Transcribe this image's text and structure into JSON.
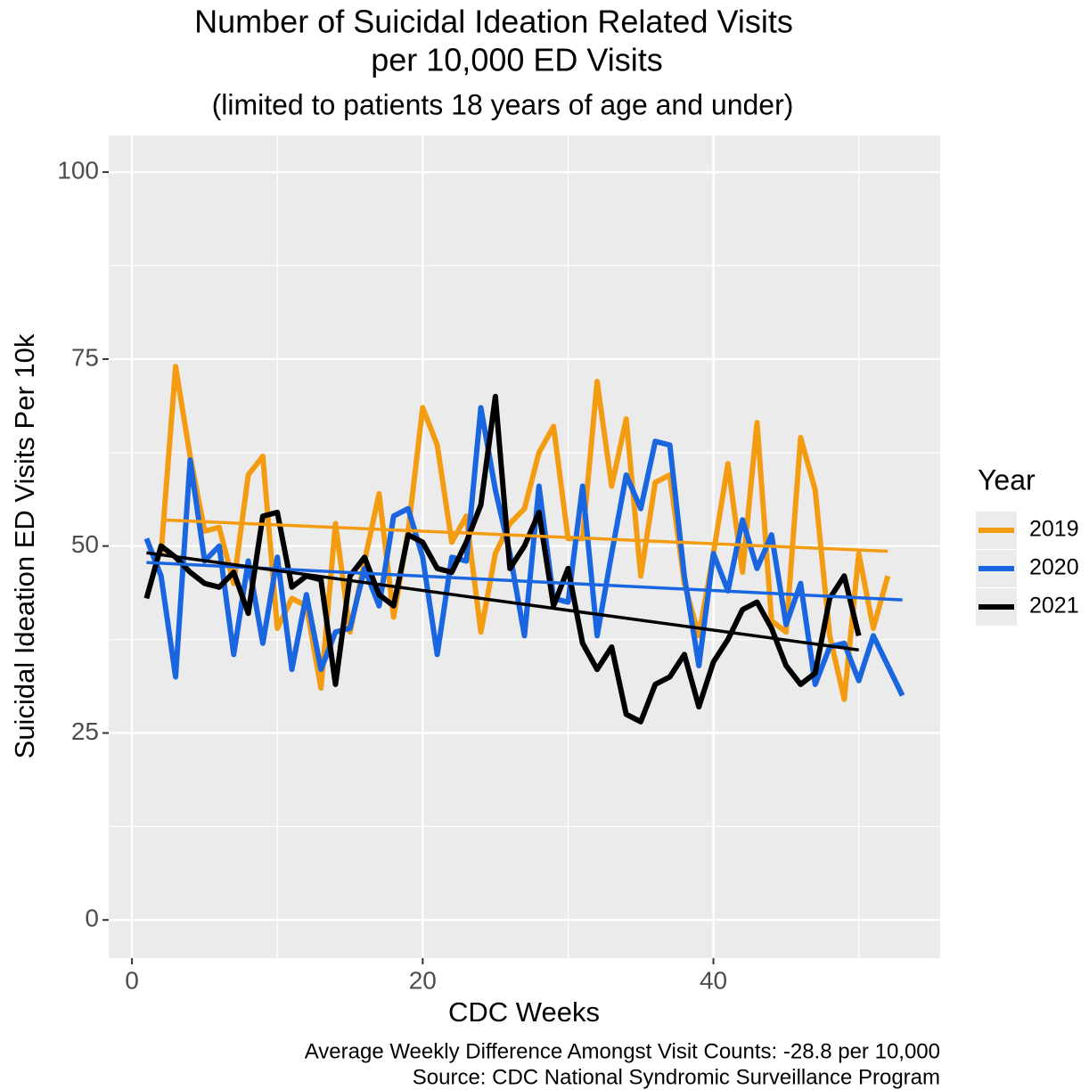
{
  "chart_data": {
    "type": "line",
    "title": [
      "Number of Suicidal Ideation Related Visits",
      "per 10,000 ED Visits"
    ],
    "subtitle": "(limited to patients 18 years of age and under)",
    "x_label": "CDC Weeks",
    "y_label": "Suicidal Ideation ED Visits Per 10k",
    "caption": [
      "Average Weekly Difference Amongst Visit Counts: -28.8 per 10,000",
      "Source: CDC National Syndromic Surveillance Program"
    ],
    "legend_title": "Year",
    "legend_position": "right",
    "grid": true,
    "xlim": [
      -1.6,
      55.6
    ],
    "xticks": [
      0,
      20,
      40
    ],
    "minor_xticks": [
      10,
      30,
      50
    ],
    "ylim": [
      -5.1,
      104.9
    ],
    "yticks": [
      0,
      25,
      50,
      75,
      100
    ],
    "minor_yticks": [
      12.5,
      37.5,
      62.5,
      87.5
    ],
    "series": [
      {
        "name": "2019",
        "color": "#f39c12",
        "x": [
          2,
          3,
          4,
          5,
          6,
          7,
          8,
          9,
          10,
          11,
          12,
          13,
          14,
          15,
          16,
          17,
          18,
          19,
          20,
          21,
          22,
          23,
          24,
          25,
          26,
          27,
          28,
          29,
          30,
          31,
          32,
          33,
          34,
          35,
          36,
          37,
          38,
          39,
          40,
          41,
          42,
          43,
          44,
          45,
          46,
          47,
          48,
          49,
          50,
          51,
          52
        ],
        "values": [
          49,
          74,
          62,
          52,
          52.5,
          45,
          59.5,
          62,
          39,
          43,
          42,
          31,
          53,
          38.5,
          48,
          57,
          40.5,
          52,
          68.5,
          63.5,
          50.5,
          54,
          38.5,
          49,
          53,
          55,
          62.5,
          66,
          51,
          51,
          72,
          58,
          67,
          46,
          58.5,
          59.5,
          45,
          38,
          49,
          61,
          46.5,
          66.5,
          40,
          38.5,
          64.5,
          57.5,
          38,
          29.5,
          49,
          39,
          46
        ],
        "trend": {
          "x": [
            2,
            52
          ],
          "values": [
            53.5,
            49.3
          ]
        }
      },
      {
        "name": "2020",
        "color": "#1a66e0",
        "x": [
          1,
          2,
          3,
          4,
          5,
          6,
          7,
          8,
          9,
          10,
          11,
          12,
          13,
          14,
          15,
          16,
          17,
          18,
          19,
          20,
          21,
          22,
          23,
          24,
          25,
          26,
          27,
          28,
          29,
          30,
          31,
          32,
          33,
          34,
          35,
          36,
          37,
          38,
          39,
          40,
          41,
          42,
          43,
          44,
          45,
          46,
          47,
          48,
          49,
          50,
          51,
          52,
          53
        ],
        "values": [
          51,
          46,
          32.5,
          61.5,
          48,
          50,
          35.5,
          48,
          37,
          48.5,
          33.5,
          43.5,
          33.5,
          38.5,
          39,
          47,
          42,
          54,
          55,
          48.5,
          35.5,
          48.5,
          48,
          68.5,
          57.5,
          49,
          38,
          58,
          43,
          42.5,
          58,
          38,
          49,
          59.5,
          55,
          64,
          63.5,
          46,
          34,
          49,
          44,
          53.5,
          47,
          51.5,
          39.5,
          45,
          31.5,
          36.5,
          37,
          32,
          38,
          34,
          30
        ],
        "trend": {
          "x": [
            1,
            53
          ],
          "values": [
            47.8,
            42.8
          ]
        }
      },
      {
        "name": "2021",
        "color": "#000000",
        "x": [
          1,
          2,
          3,
          4,
          5,
          6,
          7,
          8,
          9,
          10,
          11,
          12,
          13,
          14,
          15,
          16,
          17,
          18,
          19,
          20,
          21,
          22,
          23,
          24,
          25,
          26,
          27,
          28,
          29,
          30,
          31,
          32,
          33,
          34,
          35,
          36,
          37,
          38,
          39,
          40,
          41,
          42,
          43,
          44,
          45,
          46,
          47,
          48,
          49,
          50
        ],
        "values": [
          43,
          50,
          48.5,
          46.5,
          45,
          44.5,
          46.5,
          41,
          54,
          54.5,
          44.5,
          46,
          45.5,
          31.5,
          46,
          48.5,
          43.5,
          42,
          51.5,
          50.5,
          47,
          46.5,
          50.5,
          55.5,
          70,
          47,
          50,
          54.5,
          42,
          47,
          37,
          33.5,
          36.5,
          27.5,
          26.5,
          31.5,
          32.5,
          35.5,
          28.5,
          34.5,
          37.5,
          41.5,
          42.5,
          39,
          34,
          31.5,
          33,
          43,
          46,
          38
        ],
        "trend": {
          "x": [
            1,
            50
          ],
          "values": [
            49.1,
            36.1
          ]
        }
      }
    ]
  }
}
